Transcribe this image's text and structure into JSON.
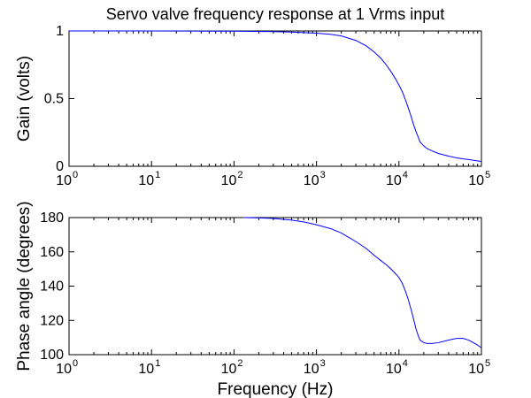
{
  "chart_data": [
    {
      "type": "line",
      "title": "Servo valve frequency response at 1 Vrms input",
      "xlabel": "",
      "ylabel": "Gain (volts)",
      "xscale": "log",
      "xlim": [
        1,
        100000
      ],
      "ylim": [
        0,
        1
      ],
      "x_ticks": [
        {
          "base": "10",
          "exp": "0"
        },
        {
          "base": "10",
          "exp": "1"
        },
        {
          "base": "10",
          "exp": "2"
        },
        {
          "base": "10",
          "exp": "3"
        },
        {
          "base": "10",
          "exp": "4"
        },
        {
          "base": "10",
          "exp": "5"
        }
      ],
      "y_ticks": [
        {
          "value": 0,
          "label": "0"
        },
        {
          "value": 0.5,
          "label": "0.5"
        },
        {
          "value": 1,
          "label": "1"
        }
      ],
      "grid": false,
      "line_color": "#0000ff",
      "series": [
        {
          "name": "gain",
          "x": [
            1,
            10,
            100,
            300,
            500,
            1000,
            1500,
            2000,
            3000,
            4000,
            5000,
            6000,
            7000,
            8000,
            9000,
            10000,
            11000,
            12000,
            13000,
            14000,
            15000,
            16000,
            17000,
            18000,
            20000,
            22000,
            25000,
            30000,
            40000,
            50000,
            60000,
            70000,
            100000
          ],
          "values": [
            1.0,
            1.0,
            0.998,
            0.995,
            0.992,
            0.984,
            0.975,
            0.963,
            0.93,
            0.89,
            0.845,
            0.8,
            0.75,
            0.7,
            0.65,
            0.6,
            0.55,
            0.49,
            0.43,
            0.37,
            0.31,
            0.26,
            0.22,
            0.18,
            0.15,
            0.13,
            0.115,
            0.095,
            0.075,
            0.062,
            0.055,
            0.05,
            0.035
          ]
        }
      ]
    },
    {
      "type": "line",
      "title": "",
      "xlabel": "Frequency (Hz)",
      "ylabel": "Phase angle (degrees)",
      "xscale": "log",
      "xlim": [
        1,
        100000
      ],
      "ylim": [
        100,
        180
      ],
      "x_ticks": [
        {
          "base": "10",
          "exp": "0"
        },
        {
          "base": "10",
          "exp": "1"
        },
        {
          "base": "10",
          "exp": "2"
        },
        {
          "base": "10",
          "exp": "3"
        },
        {
          "base": "10",
          "exp": "4"
        },
        {
          "base": "10",
          "exp": "5"
        }
      ],
      "y_ticks": [
        {
          "value": 100,
          "label": "100"
        },
        {
          "value": 120,
          "label": "120"
        },
        {
          "value": 140,
          "label": "140"
        },
        {
          "value": 160,
          "label": "160"
        },
        {
          "value": 180,
          "label": "180"
        }
      ],
      "grid": false,
      "line_color": "#0000ff",
      "series": [
        {
          "name": "phase",
          "x": [
            130,
            200,
            300,
            500,
            700,
            1000,
            1500,
            2000,
            3000,
            4000,
            5000,
            6000,
            7000,
            8000,
            9000,
            10000,
            11000,
            12000,
            13000,
            14000,
            15000,
            16000,
            17000,
            18000,
            20000,
            22000,
            25000,
            30000,
            40000,
            50000,
            60000,
            70000,
            80000,
            90000,
            100000
          ],
          "values": [
            180,
            179.8,
            179.5,
            178.5,
            177.5,
            175.8,
            173.5,
            171,
            166,
            162,
            158,
            155,
            152.5,
            150,
            147.5,
            145,
            141.5,
            137,
            132,
            126.5,
            121,
            115.5,
            111.5,
            108.5,
            107,
            106.5,
            106.5,
            107,
            108.5,
            109.5,
            109.5,
            108.5,
            107,
            105.5,
            104
          ]
        }
      ]
    }
  ]
}
